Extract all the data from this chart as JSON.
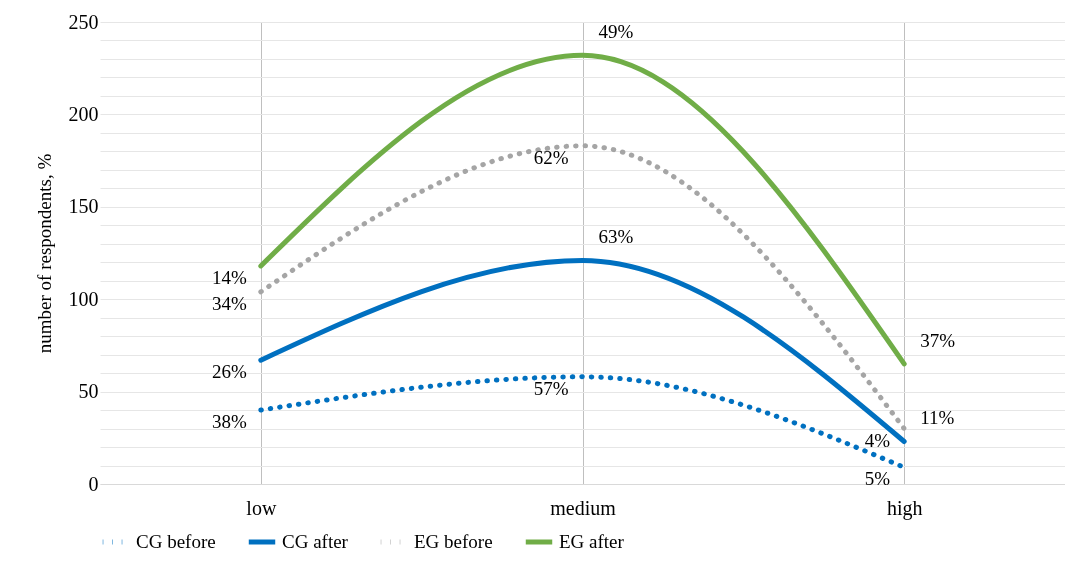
{
  "chart_data": {
    "type": "line",
    "ylabel": "number of respondents, %",
    "categories": [
      "low",
      "medium",
      "high"
    ],
    "ylim": [
      0,
      250
    ],
    "yticks": [
      0,
      {
        "value": 10,
        "label": null
      },
      {
        "value": 20,
        "label": null
      },
      {
        "value": 30,
        "label": null
      },
      {
        "value": 40,
        "label": null
      },
      50,
      {
        "value": 60,
        "label": null
      },
      {
        "value": 70,
        "label": null
      },
      {
        "value": 80,
        "label": null
      },
      {
        "value": 90,
        "label": null
      },
      100,
      {
        "value": 110,
        "label": null
      },
      {
        "value": 120,
        "label": null
      },
      {
        "value": 130,
        "label": null
      },
      {
        "value": 140,
        "label": null
      },
      150,
      {
        "value": 160,
        "label": null
      },
      {
        "value": 170,
        "label": null
      },
      {
        "value": 180,
        "label": null
      },
      {
        "value": 190,
        "label": null
      },
      200,
      {
        "value": 210,
        "label": null
      },
      {
        "value": 220,
        "label": null
      },
      {
        "value": 230,
        "label": null
      },
      {
        "value": 240,
        "label": null
      },
      250
    ],
    "grid": true,
    "legend": "bottom",
    "marker": "none",
    "series": [
      {
        "name": "CG before",
        "color": "#0070c0",
        "line_style": "dotted",
        "values": [
          40,
          58,
          9
        ]
      },
      {
        "name": "CG after",
        "color": "#0070c0",
        "line_style": "solid",
        "values": [
          67,
          121,
          23
        ]
      },
      {
        "name": "EG before",
        "color": "#a5a5a5",
        "line_style": "dotted",
        "values": [
          104,
          183,
          30
        ]
      },
      {
        "name": "EG after",
        "color": "#70ad47",
        "line_style": "solid",
        "values": [
          118,
          232,
          65
        ]
      }
    ],
    "annotations": [
      {
        "text": "38%",
        "x": "low",
        "y": 40
      },
      {
        "text": "57%",
        "x": "medium",
        "y": 58
      },
      {
        "text": "5%",
        "x": "high",
        "y": 9
      },
      {
        "text": "26%",
        "x": "low",
        "y": 67
      },
      {
        "text": "63%",
        "x": "medium",
        "y": 121
      },
      {
        "text": "11%",
        "x": "high",
        "y": 23
      },
      {
        "text": "34%",
        "x": "low",
        "y": 104
      },
      {
        "text": "62%",
        "x": "medium",
        "y": 183
      },
      {
        "text": "4%",
        "x": "high",
        "y": 30
      },
      {
        "text": "14%",
        "x": "low",
        "y": 118
      },
      {
        "text": "49%",
        "x": "medium",
        "y": 232
      },
      {
        "text": "37%",
        "x": "high",
        "y": 65
      }
    ]
  }
}
